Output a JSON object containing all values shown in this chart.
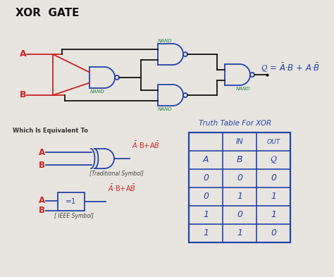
{
  "title": "XOR  GATE",
  "bg_color": "#e8e5e0",
  "gate_color": "#2244aa",
  "wire_red": "#cc2222",
  "wire_dark": "#111111",
  "nand_color": "#228844",
  "formula_color": "#2244aa",
  "red_formula_color": "#cc2222",
  "which_eq": "Which Is Equivalent To",
  "truth_title": "Truth Table For XOR",
  "trad_label": "[Traditional Symbol]",
  "ieee_label": "[ IEEE Symbol]",
  "truth_data": [
    [
      "0",
      "0",
      "0"
    ],
    [
      "0",
      "1",
      "1"
    ],
    [
      "1",
      "0",
      "1"
    ],
    [
      "1",
      "1",
      "0"
    ]
  ]
}
